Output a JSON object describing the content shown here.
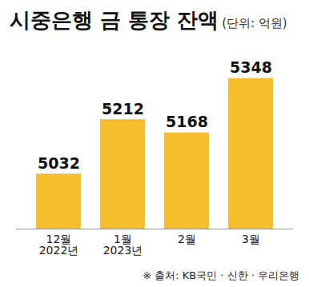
{
  "chart_data": {
    "type": "bar",
    "title": "시중은행 금 통장 잔액",
    "subtitle": "(단위: 억원)",
    "caption": "※ 출처: KB국민 · 신한 · 우리은행",
    "categories": [
      "12월\n2022년",
      "1월\n2023년",
      "2월",
      "3월"
    ],
    "values": [
      5032,
      5212,
      5168,
      5348
    ],
    "color": "#f6be2c",
    "ylim": [
      4850,
      5400
    ],
    "grid": false,
    "data_labels": true,
    "tick_labels": "x"
  }
}
